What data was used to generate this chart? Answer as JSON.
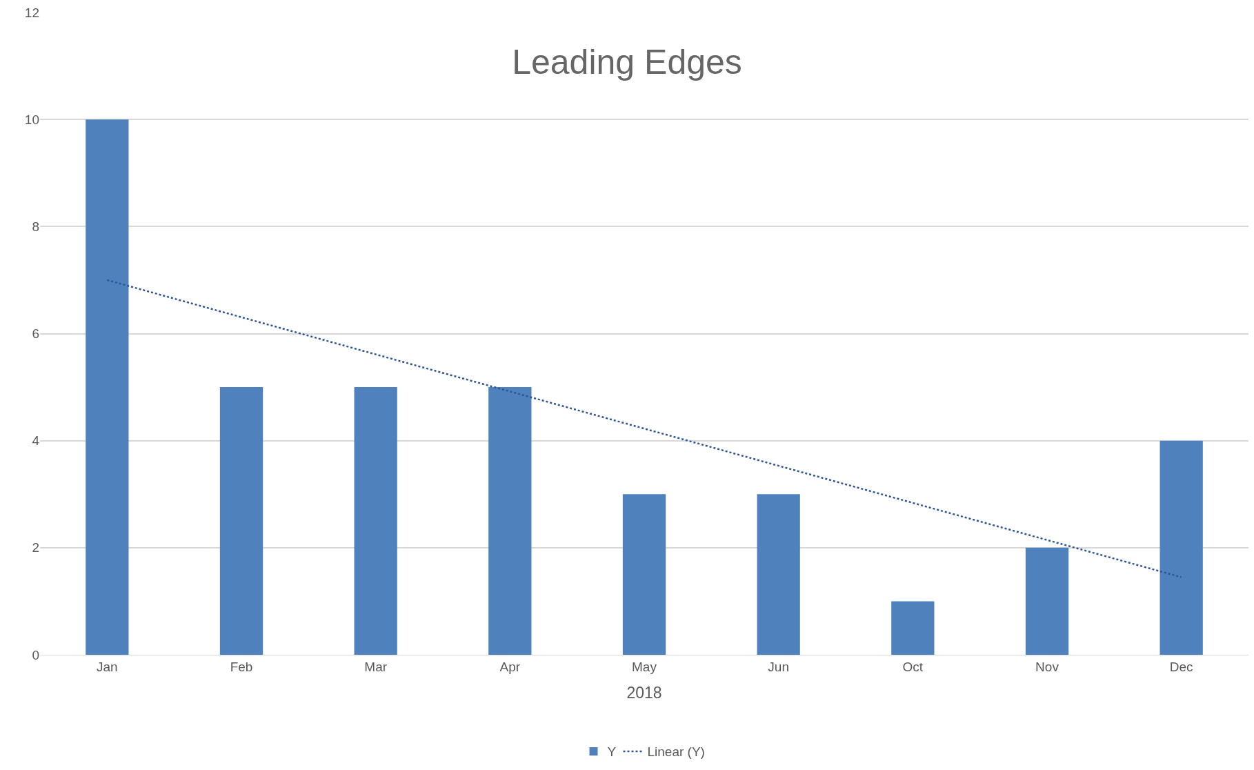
{
  "chart_data": {
    "type": "bar",
    "title": "Leading Edges",
    "xlabel": "2018",
    "categories": [
      "Jan",
      "Feb",
      "Mar",
      "Apr",
      "May",
      "Jun",
      "Oct",
      "Nov",
      "Dec"
    ],
    "series": [
      {
        "name": "Y",
        "color": "#4f81bd",
        "values": [
          10,
          5,
          5,
          5,
          3,
          3,
          1,
          2,
          4
        ]
      },
      {
        "name": "Linear (Y)",
        "type": "line",
        "color": "#2f5597",
        "line_style": "dotted",
        "marker": "none",
        "x": [
          "Jan",
          "Dec"
        ],
        "values": [
          7.0,
          1.45
        ]
      }
    ],
    "ylim": [
      0,
      12
    ],
    "yticks": [
      0,
      2,
      4,
      6,
      8,
      10,
      12
    ],
    "grid": "y",
    "legend": "bottom"
  }
}
